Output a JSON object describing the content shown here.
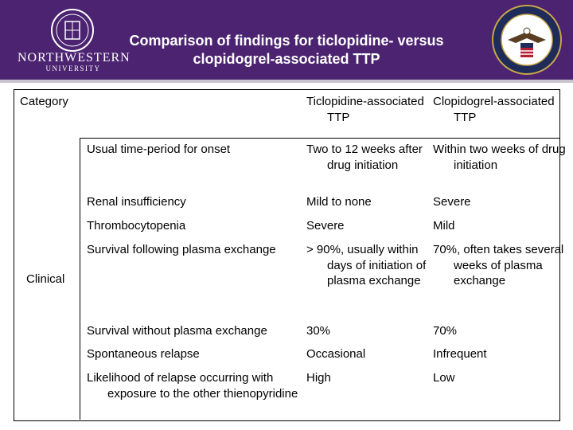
{
  "header": {
    "title": "Comparison of findings for ticlopidine- versus clopidogrel-associated TTP",
    "left_logo_text": "NORTHWESTERN",
    "left_logo_subtext": "UNIVERSITY",
    "colors": {
      "header_bg": "#4b2370",
      "rule": "#c8c3cc"
    }
  },
  "table": {
    "headers": {
      "category": "Category",
      "ticlopidine": "Ticlopidine-associated TTP",
      "clopidogrel": "Clopidogrel-associated TTP"
    },
    "group_label": "Clinical",
    "rows": [
      {
        "finding": "Usual time-period for onset",
        "ticlopidine": "Two to 12 weeks after drug initiation",
        "clopidogrel": "Within two weeks of drug initiation"
      },
      {
        "finding": "Renal insufficiency",
        "ticlopidine": "Mild to none",
        "clopidogrel": "Severe"
      },
      {
        "finding": "Thrombocytopenia",
        "ticlopidine": "Severe",
        "clopidogrel": "Mild"
      },
      {
        "finding": "Survival following plasma exchange",
        "ticlopidine": "> 90%, usually within days of initiation of plasma exchange",
        "clopidogrel": "70%, often takes several weeks of plasma exchange"
      },
      {
        "finding": "Survival without plasma exchange",
        "ticlopidine": "30%",
        "clopidogrel": "70%"
      },
      {
        "finding": "Spontaneous relapse",
        "ticlopidine": "Occasional",
        "clopidogrel": "Infrequent"
      },
      {
        "finding": "Likelihood of relapse occurring with exposure to the other thienopyridine",
        "ticlopidine": "High",
        "clopidogrel": "Low"
      }
    ]
  }
}
